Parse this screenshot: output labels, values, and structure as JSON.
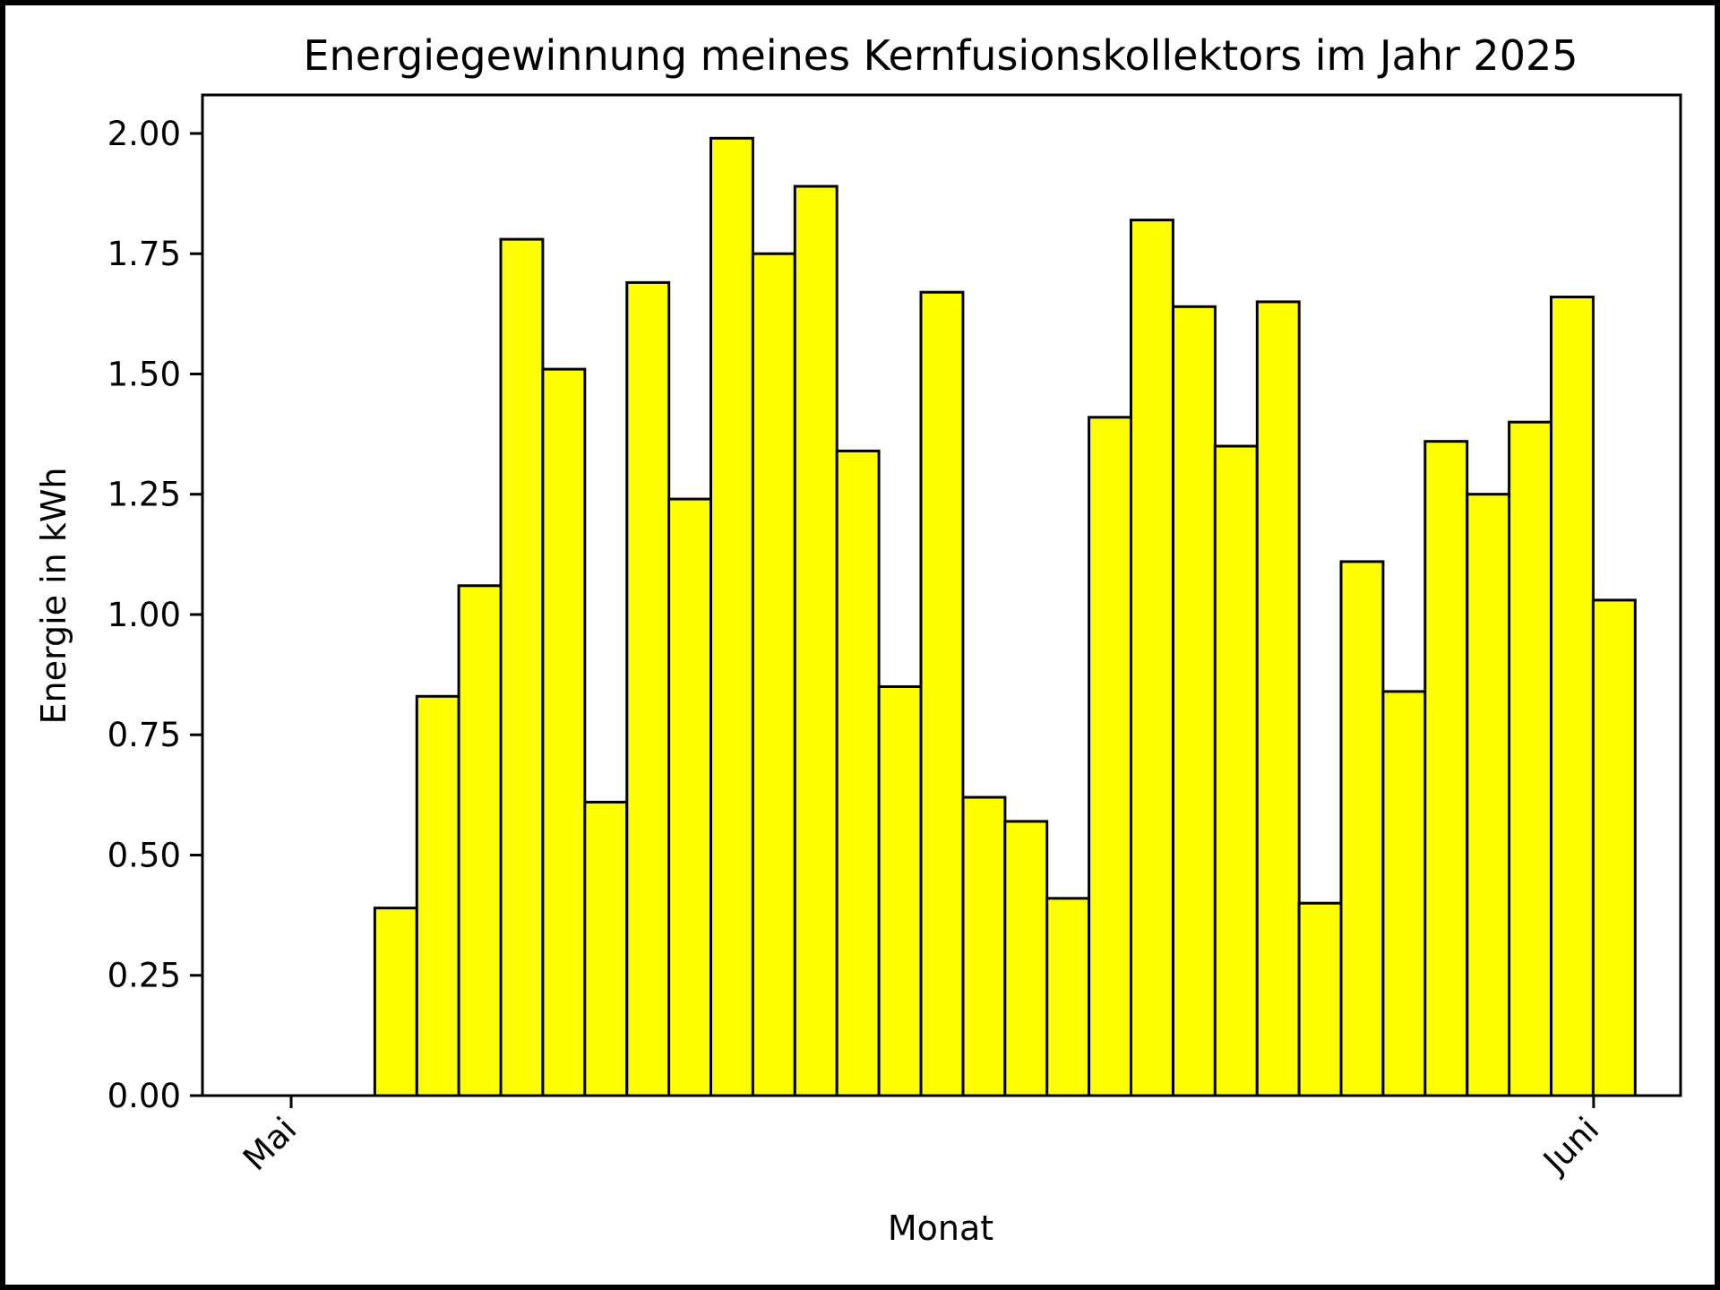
{
  "chart_data": {
    "type": "bar",
    "title": "Energiegewinnung meines Kernfusionskollektors im Jahr 2025",
    "xlabel": "Monat",
    "ylabel": "Energie in kWh",
    "ylim": [
      0,
      2.08
    ],
    "yticks": [
      "0.00",
      "0.25",
      "0.50",
      "0.75",
      "1.00",
      "1.25",
      "1.50",
      "1.75",
      "2.00"
    ],
    "xticks": [
      "Mai",
      "Juni"
    ],
    "grid": false,
    "legend": "none",
    "categories": [
      "2025-05-01",
      "2025-05-02",
      "2025-05-03",
      "2025-05-04",
      "2025-05-05",
      "2025-05-06",
      "2025-05-07",
      "2025-05-08",
      "2025-05-09",
      "2025-05-10",
      "2025-05-11",
      "2025-05-12",
      "2025-05-13",
      "2025-05-14",
      "2025-05-15",
      "2025-05-16",
      "2025-05-17",
      "2025-05-18",
      "2025-05-19",
      "2025-05-20",
      "2025-05-21",
      "2025-05-22",
      "2025-05-23",
      "2025-05-24",
      "2025-05-25",
      "2025-05-26",
      "2025-05-27",
      "2025-05-28",
      "2025-05-29",
      "2025-05-30",
      "2025-05-31",
      "2025-06-01"
    ],
    "values": [
      0.0,
      0.0,
      0.39,
      0.83,
      1.06,
      1.78,
      1.51,
      0.61,
      1.69,
      1.24,
      1.99,
      1.75,
      1.89,
      1.34,
      0.85,
      1.67,
      0.62,
      0.57,
      0.41,
      1.41,
      1.82,
      1.64,
      1.35,
      1.65,
      0.4,
      1.11,
      0.84,
      1.36,
      1.25,
      1.4,
      1.66,
      1.03
    ],
    "colors": {
      "bar_fill": "#ffff00",
      "bar_edge": "#000000",
      "axes": "#000000",
      "background": "#ffffff"
    }
  }
}
